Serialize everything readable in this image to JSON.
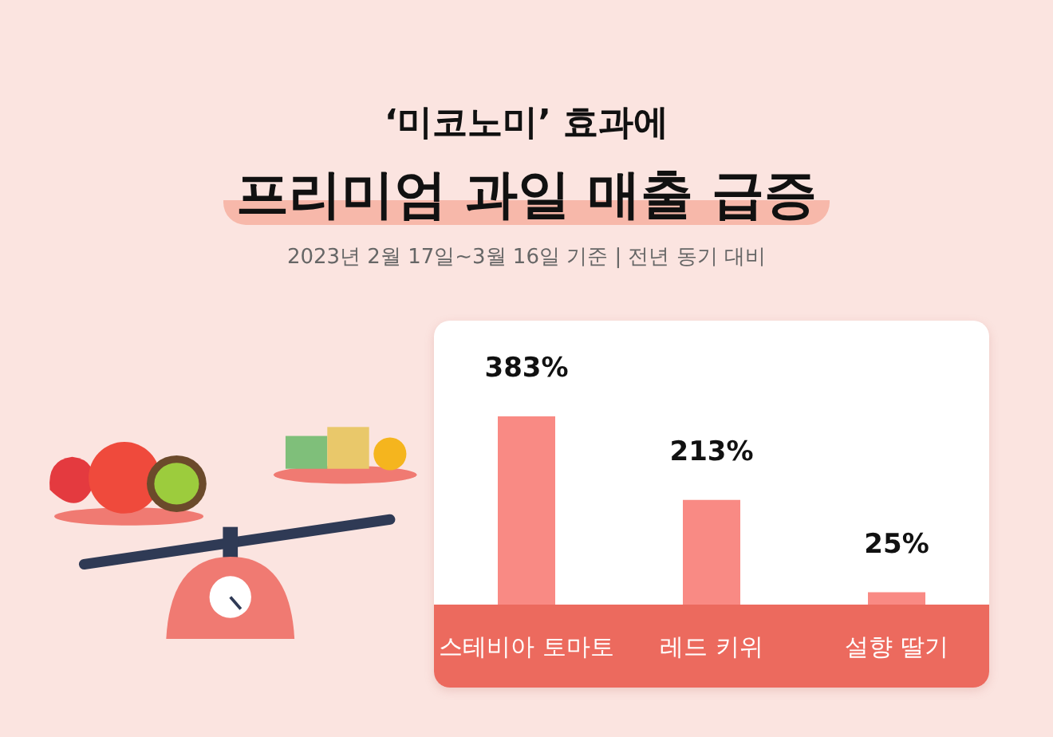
{
  "chart_data": {
    "type": "bar",
    "title": "프리미엄 과일 매출 급증",
    "subtitle": "2023년 2월 17일~3월 16일 기준 | 전년 동기 대비",
    "annotations": [
      "‘미코노미’ 효과에"
    ],
    "categories": [
      "스테비아 토마토",
      "레드 키위",
      "설향 딸기"
    ],
    "values": [
      383,
      213,
      25
    ],
    "value_labels": [
      "383%",
      "213%",
      "25%"
    ],
    "color": "#f98a84"
  }
}
